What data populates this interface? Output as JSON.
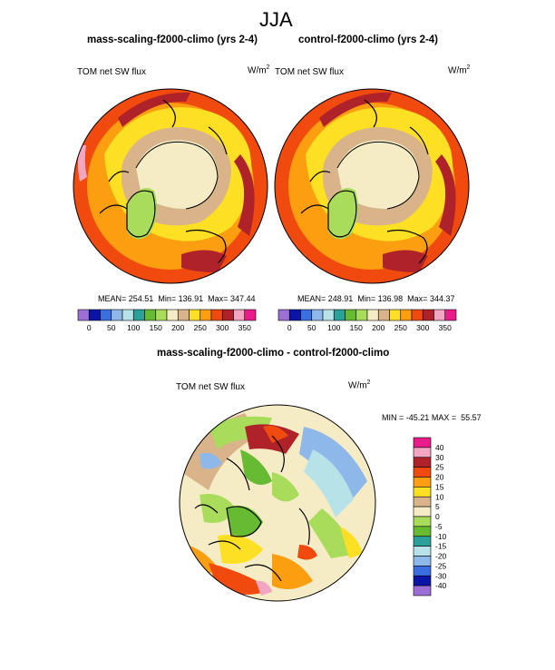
{
  "figure": {
    "season": "JJA",
    "panel_left_title": "mass-scaling-f2000-climo (yrs 2-4)",
    "panel_right_title": "control-f2000-climo (yrs 2-4)",
    "panel_diff_title": "mass-scaling-f2000-climo - control-f2000-climo",
    "variable": "TOM net SW flux",
    "units_base": "W/m",
    "units_exp": "2"
  },
  "palettes": {
    "abs_colors": [
      "#9c6fd6",
      "#0a14a6",
      "#3b6fe0",
      "#8fb8ea",
      "#b6e2e8",
      "#2aa19a",
      "#66bb33",
      "#a8dc5a",
      "#f5ecc6",
      "#d9b48a",
      "#fde023",
      "#fb9e0f",
      "#f04a0e",
      "#b0222a",
      "#f2a6c2",
      "#e81c8a"
    ],
    "diff_colors": [
      "#9c6fd6",
      "#0a14a6",
      "#3b6fe0",
      "#8fb8ea",
      "#b6e2e8",
      "#2aa19a",
      "#66bb33",
      "#a8dc5a",
      "#f5ecc6",
      "#d9b48a",
      "#fde023",
      "#fb9e0f",
      "#f04a0e",
      "#b0222a",
      "#f2a6c2",
      "#e81c8a"
    ]
  },
  "chart_data": [
    {
      "type": "heatmap",
      "projection": "north polar stereographic",
      "title": "mass-scaling-f2000-climo (yrs 2-4)",
      "variable": "TOM net SW flux",
      "units": "W/m2",
      "stats": {
        "mean_label": "MEAN=",
        "mean": "254.51",
        "min_label": "Min=",
        "min": "136.91",
        "max_label": "Max=",
        "max": "347.44"
      },
      "colorbar_ticks": [
        "0",
        "50",
        "100",
        "150",
        "200",
        "250",
        "300",
        "350"
      ]
    },
    {
      "type": "heatmap",
      "projection": "north polar stereographic",
      "title": "control-f2000-climo (yrs 2-4)",
      "variable": "TOM net SW flux",
      "units": "W/m2",
      "stats": {
        "mean_label": "MEAN=",
        "mean": "248.91",
        "min_label": "Min=",
        "min": "136.98",
        "max_label": "Max=",
        "max": "344.37"
      },
      "colorbar_ticks": [
        "0",
        "50",
        "100",
        "150",
        "200",
        "250",
        "300",
        "350"
      ]
    },
    {
      "type": "heatmap",
      "projection": "north polar stereographic",
      "title": "mass-scaling-f2000-climo - control-f2000-climo",
      "variable": "TOM net SW flux",
      "units": "W/m2",
      "stats": {
        "min_label": "MIN =",
        "min": "-45.21",
        "max_label": "MAX =",
        "max": "55.57"
      },
      "colorbar_ticks": [
        "40",
        "30",
        "25",
        "20",
        "15",
        "10",
        "5",
        "0",
        "-5",
        "-10",
        "-15",
        "-20",
        "-25",
        "-30",
        "-40"
      ]
    }
  ]
}
